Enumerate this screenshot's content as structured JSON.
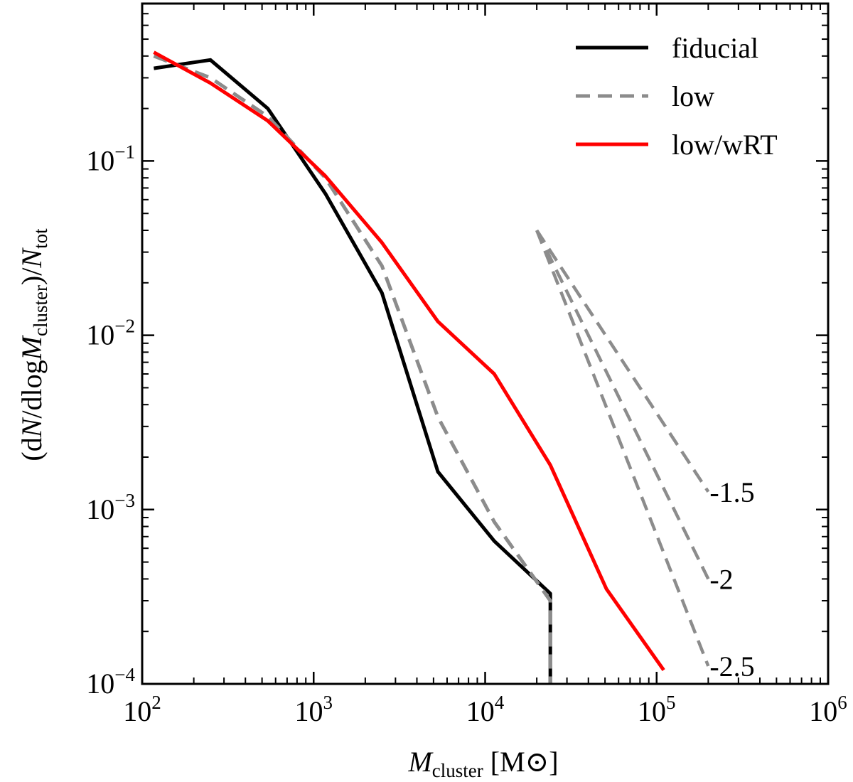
{
  "chart_data": {
    "type": "line",
    "title": "",
    "xlabel": {
      "italic": "M",
      "sub": "cluster",
      "rest": " [M",
      "sun": "⊙",
      "close": "]"
    },
    "ylabel": {
      "p1": "(d",
      "n1": "N",
      "p2": "/dlog",
      "m": "M",
      "sub1": "cluster",
      "p3": ")/",
      "n2": "N",
      "sub2": "tot"
    },
    "xscale": "log",
    "yscale": "log",
    "xlim": [
      100,
      1000000
    ],
    "ylim": [
      0.0001,
      0.8
    ],
    "xticks": [
      {
        "value": 100,
        "base": "10",
        "exp": "2"
      },
      {
        "value": 1000,
        "base": "10",
        "exp": "3"
      },
      {
        "value": 10000,
        "base": "10",
        "exp": "4"
      },
      {
        "value": 100000,
        "base": "10",
        "exp": "5"
      },
      {
        "value": 1000000,
        "base": "10",
        "exp": "6"
      }
    ],
    "yticks": [
      {
        "value": 0.0001,
        "base": "10",
        "exp": "−4"
      },
      {
        "value": 0.001,
        "base": "10",
        "exp": "−3"
      },
      {
        "value": 0.01,
        "base": "10",
        "exp": "−2"
      },
      {
        "value": 0.1,
        "base": "10",
        "exp": "−1"
      }
    ],
    "legend_position": "top-right",
    "series": [
      {
        "name": "fiducial",
        "color": "#000000",
        "dash": "solid",
        "x": [
          117,
          250,
          540,
          1170,
          2500,
          5300,
          11300,
          24000,
          24000
        ],
        "y": [
          0.34,
          0.38,
          0.2,
          0.065,
          0.0175,
          0.00165,
          0.00066,
          0.00033,
          0.0001
        ]
      },
      {
        "name": "low",
        "color": "#8c8c8c",
        "dash": "dashed",
        "x": [
          117,
          250,
          540,
          1170,
          2500,
          5300,
          11300,
          24000,
          24000
        ],
        "y": [
          0.4,
          0.3,
          0.18,
          0.08,
          0.025,
          0.0034,
          0.00085,
          0.0003,
          0.0001
        ]
      },
      {
        "name": "low/wRT",
        "color": "#ff0000",
        "dash": "solid",
        "x": [
          117,
          250,
          540,
          1170,
          2500,
          5300,
          11300,
          24000,
          51000,
          110000
        ],
        "y": [
          0.42,
          0.28,
          0.17,
          0.082,
          0.034,
          0.012,
          0.006,
          0.0018,
          0.00035,
          0.00012
        ]
      }
    ],
    "reference_slopes": [
      {
        "label": "-1.5",
        "slope": -1.5,
        "x0": 20000,
        "y0": 0.04,
        "x1": 200000
      },
      {
        "label": "-2",
        "slope": -2,
        "x0": 20000,
        "y0": 0.04,
        "x1": 200000
      },
      {
        "label": "-2.5",
        "slope": -2.5,
        "x0": 20000,
        "y0": 0.04,
        "x1": 200000
      }
    ],
    "reference_color": "#8c8c8c"
  }
}
